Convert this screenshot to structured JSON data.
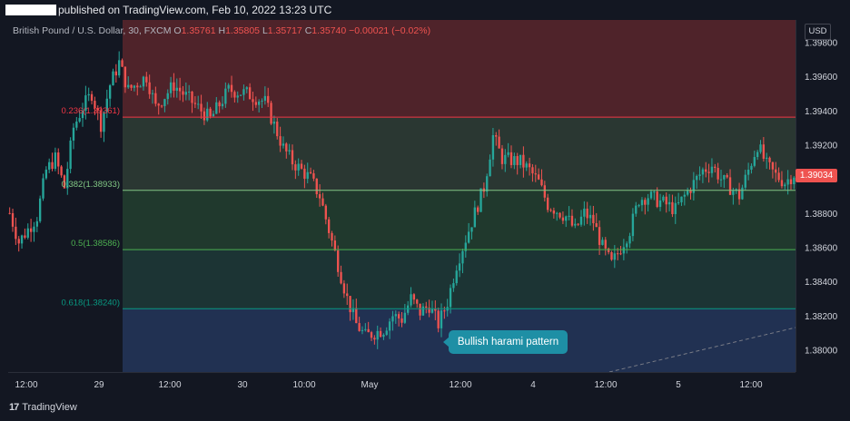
{
  "header": {
    "published": "published on TradingView.com, Feb 10, 2022 13:23 UTC"
  },
  "legend": {
    "symbol": "British Pound / U.S. Dollar, 30, FXCM",
    "o_label": "O",
    "o": "1.35761",
    "h_label": "H",
    "h": "1.35805",
    "l_label": "L",
    "l": "1.35717",
    "c_label": "C",
    "c": "1.35740",
    "change": "−0.00021 (−0.02%)"
  },
  "currency": "USD",
  "last_price": "1.39034",
  "annotation": "Bullish harami pattern",
  "brand": "TradingView",
  "colors": {
    "up": "#26a69a",
    "down": "#ef5350",
    "background": "#131722"
  },
  "chart_data": {
    "type": "candlestick",
    "ylim": [
      1.3787,
      1.3993
    ],
    "y_ticks": [
      "1.39800",
      "1.39600",
      "1.39400",
      "1.39200",
      "1.39000",
      "1.38800",
      "1.38600",
      "1.38400",
      "1.38200",
      "1.38000"
    ],
    "x_ticks": [
      "12:00",
      "29",
      "12:00",
      "30",
      "10:00",
      "May",
      "12:00",
      "4",
      "12:00",
      "5",
      "12:00"
    ],
    "fib_levels": [
      {
        "label": "0.236(1.39361)",
        "value": 1.39361,
        "color": "#f23645"
      },
      {
        "label": "0.382(1.38933)",
        "value": 1.38933,
        "color": "#81c784"
      },
      {
        "label": "0.5(1.38586)",
        "value": 1.38586,
        "color": "#4caf50"
      },
      {
        "label": "0.618(1.38240)",
        "value": 1.3824,
        "color": "#089981"
      }
    ],
    "price_path": [
      [
        0,
        1.388
      ],
      [
        1,
        1.3863
      ],
      [
        3,
        1.3878
      ],
      [
        4,
        1.3905
      ],
      [
        5,
        1.3912
      ],
      [
        6,
        1.3895
      ],
      [
        7,
        1.393
      ],
      [
        8,
        1.3942
      ],
      [
        9,
        1.395
      ],
      [
        10,
        1.3932
      ],
      [
        11,
        1.3955
      ],
      [
        12,
        1.3968
      ],
      [
        13,
        1.3952
      ],
      [
        15,
        1.396
      ],
      [
        16,
        1.3942
      ],
      [
        18,
        1.3955
      ],
      [
        20,
        1.3945
      ],
      [
        22,
        1.3935
      ],
      [
        24,
        1.3952
      ],
      [
        26,
        1.395
      ],
      [
        28,
        1.3945
      ],
      [
        30,
        1.3918
      ],
      [
        31,
        1.391
      ],
      [
        33,
        1.39
      ],
      [
        34,
        1.389
      ],
      [
        35,
        1.387
      ],
      [
        36,
        1.385
      ],
      [
        37,
        1.383
      ],
      [
        38,
        1.3815
      ],
      [
        39,
        1.3808
      ],
      [
        41,
        1.3812
      ],
      [
        42,
        1.382
      ],
      [
        43,
        1.3818
      ],
      [
        44,
        1.383
      ],
      [
        45,
        1.3822
      ],
      [
        46,
        1.3826
      ],
      [
        47,
        1.3815
      ],
      [
        48,
        1.3828
      ],
      [
        49,
        1.385
      ],
      [
        50,
        1.3865
      ],
      [
        51,
        1.388
      ],
      [
        52,
        1.3895
      ],
      [
        53,
        1.3925
      ],
      [
        54,
        1.3912
      ],
      [
        56,
        1.391
      ],
      [
        57,
        1.3905
      ],
      [
        58,
        1.3898
      ],
      [
        59,
        1.3885
      ],
      [
        61,
        1.3878
      ],
      [
        62,
        1.387
      ],
      [
        63,
        1.388
      ],
      [
        64,
        1.3875
      ],
      [
        65,
        1.386
      ],
      [
        66,
        1.385
      ],
      [
        67,
        1.386
      ],
      [
        68,
        1.387
      ],
      [
        69,
        1.3888
      ],
      [
        70,
        1.389
      ],
      [
        72,
        1.3885
      ],
      [
        73,
        1.3882
      ],
      [
        74,
        1.389
      ],
      [
        76,
        1.3905
      ],
      [
        77,
        1.3908
      ],
      [
        78,
        1.39
      ],
      [
        79,
        1.3895
      ],
      [
        80,
        1.389
      ],
      [
        81,
        1.3905
      ],
      [
        82,
        1.392
      ],
      [
        83,
        1.3908
      ],
      [
        84,
        1.3902
      ],
      [
        85,
        1.3898
      ],
      [
        86,
        1.3903
      ]
    ]
  }
}
